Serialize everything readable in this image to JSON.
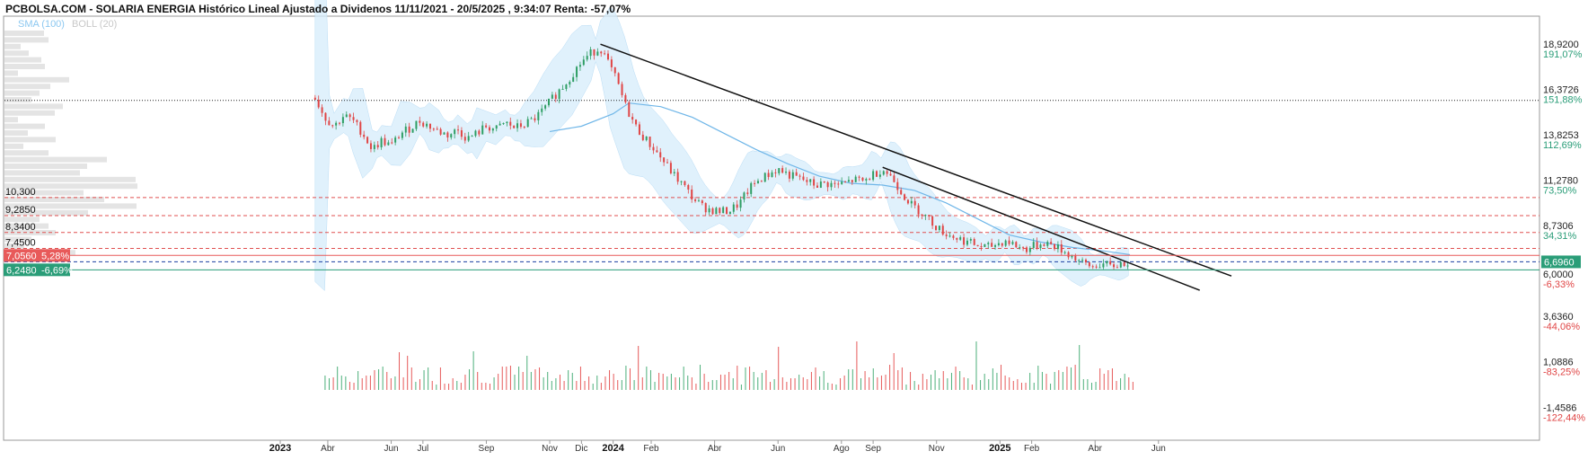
{
  "chart_data": {
    "type": "candlestick",
    "title": "PCBOLSA.COM - SOLARIA ENERGIA Histórico Lineal Ajustado a Dividenos 11/11/2021 - 20/5/2025 , 9:34:07 Renta: -57,07%",
    "legend": [
      {
        "label": "SMA (100)",
        "color": "#8cc8f0"
      },
      {
        "label": "BOLL (20)",
        "color": "#c8c8c8"
      }
    ],
    "x_axis": {
      "ticks": [
        {
          "label": "2023",
          "bold": true,
          "t": 0
        },
        {
          "label": "Abr",
          "bold": false,
          "t": 1.5
        },
        {
          "label": "Jun",
          "bold": false,
          "t": 3.5
        },
        {
          "label": "Jul",
          "bold": false,
          "t": 4.5
        },
        {
          "label": "Sep",
          "bold": false,
          "t": 6.5
        },
        {
          "label": "Nov",
          "bold": false,
          "t": 8.5
        },
        {
          "label": "Dic",
          "bold": false,
          "t": 9.5
        },
        {
          "label": "2024",
          "bold": true,
          "t": 10.5
        },
        {
          "label": "Feb",
          "bold": false,
          "t": 11.7
        },
        {
          "label": "Abr",
          "bold": false,
          "t": 13.7
        },
        {
          "label": "Jun",
          "bold": false,
          "t": 15.7
        },
        {
          "label": "Ago",
          "bold": false,
          "t": 17.7
        },
        {
          "label": "Sep",
          "bold": false,
          "t": 18.7
        },
        {
          "label": "Nov",
          "bold": false,
          "t": 20.7
        },
        {
          "label": "2025",
          "bold": true,
          "t": 22.7
        },
        {
          "label": "Feb",
          "bold": false,
          "t": 23.7
        },
        {
          "label": "Abr",
          "bold": false,
          "t": 25.7
        },
        {
          "label": "Jun",
          "bold": false,
          "t": 27.7
        }
      ]
    },
    "y_axis": {
      "range": [
        -2.3,
        19.6
      ],
      "ticks": [
        {
          "value": "18,9200",
          "pct": "191,07%",
          "v": 18.92,
          "pos": true
        },
        {
          "value": "16,3726",
          "pct": "151,88%",
          "v": 16.3726,
          "pos": true
        },
        {
          "value": "13,8253",
          "pct": "112,69%",
          "v": 13.8253,
          "pos": true
        },
        {
          "value": "11,2780",
          "pct": "73,50%",
          "v": 11.278,
          "pos": true
        },
        {
          "value": "8,7306",
          "pct": "34,31%",
          "v": 8.7306,
          "pos": true
        },
        {
          "value": "6,0000",
          "pct": "-6,33%",
          "v": 6.0,
          "pos": false
        },
        {
          "value": "3,6360",
          "pct": "-44,06%",
          "v": 3.636,
          "pos": false
        },
        {
          "value": "1,0886",
          "pct": "-83,25%",
          "v": 1.0886,
          "pos": false
        },
        {
          "value": "-1,4586",
          "pct": "-122,44%",
          "v": -1.4586,
          "pos": false
        }
      ]
    },
    "current_price": "6,6960",
    "horizontal_levels": [
      {
        "label": "10,300",
        "v": 10.3,
        "color": "#e05050",
        "style": "dashed"
      },
      {
        "label": "9,2850",
        "v": 9.285,
        "color": "#e05050",
        "style": "dashed"
      },
      {
        "label": "8,3400",
        "v": 8.34,
        "color": "#e05050",
        "style": "dashed"
      },
      {
        "label": "7,4500",
        "v": 7.45,
        "color": "#e05050",
        "style": "dashed"
      },
      {
        "label": "",
        "v": 15.75,
        "color": "#222222",
        "style": "dotted"
      },
      {
        "label": "",
        "v": 6.7,
        "color": "#1a3fa0",
        "style": "dashed"
      }
    ],
    "tags": [
      {
        "price": "7,0560",
        "pct": "5,28%",
        "v": 7.056,
        "color": "#e85a5a"
      },
      {
        "price": "6,2480",
        "pct": "-6,69%",
        "v": 6.248,
        "color": "#2a9d78"
      }
    ],
    "series": [
      {
        "t": 1.1,
        "v": 15.9
      },
      {
        "t": 1.4,
        "v": 14.8
      },
      {
        "t": 1.7,
        "v": 14.3
      },
      {
        "t": 2.0,
        "v": 14.9
      },
      {
        "t": 2.3,
        "v": 14.6
      },
      {
        "t": 2.6,
        "v": 13.9
      },
      {
        "t": 2.9,
        "v": 13.0
      },
      {
        "t": 3.2,
        "v": 13.5
      },
      {
        "t": 3.5,
        "v": 13.2
      },
      {
        "t": 3.8,
        "v": 13.9
      },
      {
        "t": 4.1,
        "v": 14.2
      },
      {
        "t": 4.4,
        "v": 14.6
      },
      {
        "t": 4.7,
        "v": 14.3
      },
      {
        "t": 5.0,
        "v": 14.0
      },
      {
        "t": 5.3,
        "v": 13.8
      },
      {
        "t": 5.6,
        "v": 14.1
      },
      {
        "t": 5.9,
        "v": 13.6
      },
      {
        "t": 6.2,
        "v": 13.9
      },
      {
        "t": 6.5,
        "v": 14.3
      },
      {
        "t": 6.8,
        "v": 14.1
      },
      {
        "t": 7.1,
        "v": 14.5
      },
      {
        "t": 7.4,
        "v": 14.2
      },
      {
        "t": 7.7,
        "v": 14.4
      },
      {
        "t": 8.0,
        "v": 14.7
      },
      {
        "t": 8.3,
        "v": 15.2
      },
      {
        "t": 8.6,
        "v": 15.9
      },
      {
        "t": 8.9,
        "v": 16.5
      },
      {
        "t": 9.2,
        "v": 17.2
      },
      {
        "t": 9.5,
        "v": 17.9
      },
      {
        "t": 9.8,
        "v": 18.4
      },
      {
        "t": 10.1,
        "v": 18.7
      },
      {
        "t": 10.3,
        "v": 18.0
      },
      {
        "t": 10.6,
        "v": 16.9
      },
      {
        "t": 10.9,
        "v": 15.4
      },
      {
        "t": 11.2,
        "v": 14.3
      },
      {
        "t": 11.5,
        "v": 13.6
      },
      {
        "t": 11.8,
        "v": 13.0
      },
      {
        "t": 12.1,
        "v": 12.3
      },
      {
        "t": 12.4,
        "v": 11.6
      },
      {
        "t": 12.7,
        "v": 11.0
      },
      {
        "t": 13.0,
        "v": 10.3
      },
      {
        "t": 13.3,
        "v": 9.8
      },
      {
        "t": 13.6,
        "v": 9.6
      },
      {
        "t": 13.9,
        "v": 9.5
      },
      {
        "t": 14.2,
        "v": 9.6
      },
      {
        "t": 14.5,
        "v": 10.0
      },
      {
        "t": 14.8,
        "v": 10.8
      },
      {
        "t": 15.1,
        "v": 11.3
      },
      {
        "t": 15.4,
        "v": 11.6
      },
      {
        "t": 15.7,
        "v": 11.9
      },
      {
        "t": 16.0,
        "v": 11.6
      },
      {
        "t": 16.3,
        "v": 11.4
      },
      {
        "t": 16.6,
        "v": 11.2
      },
      {
        "t": 16.9,
        "v": 11.0
      },
      {
        "t": 17.2,
        "v": 11.1
      },
      {
        "t": 17.5,
        "v": 11.0
      },
      {
        "t": 17.8,
        "v": 11.1
      },
      {
        "t": 18.1,
        "v": 11.3
      },
      {
        "t": 18.4,
        "v": 11.2
      },
      {
        "t": 18.7,
        "v": 11.6
      },
      {
        "t": 19.0,
        "v": 11.9
      },
      {
        "t": 19.3,
        "v": 11.4
      },
      {
        "t": 19.6,
        "v": 10.6
      },
      {
        "t": 19.9,
        "v": 9.9
      },
      {
        "t": 20.2,
        "v": 9.5
      },
      {
        "t": 20.5,
        "v": 9.0
      },
      {
        "t": 20.8,
        "v": 8.5
      },
      {
        "t": 21.1,
        "v": 8.2
      },
      {
        "t": 21.4,
        "v": 8.0
      },
      {
        "t": 21.7,
        "v": 7.8
      },
      {
        "t": 22.0,
        "v": 7.6
      },
      {
        "t": 22.3,
        "v": 7.5
      },
      {
        "t": 22.6,
        "v": 7.7
      },
      {
        "t": 22.9,
        "v": 7.9
      },
      {
        "t": 23.2,
        "v": 7.6
      },
      {
        "t": 23.5,
        "v": 7.4
      },
      {
        "t": 23.8,
        "v": 7.6
      },
      {
        "t": 24.1,
        "v": 7.8
      },
      {
        "t": 24.4,
        "v": 7.6
      },
      {
        "t": 24.7,
        "v": 7.3
      },
      {
        "t": 25.0,
        "v": 7.0
      },
      {
        "t": 25.3,
        "v": 6.6
      },
      {
        "t": 25.6,
        "v": 6.4
      },
      {
        "t": 25.9,
        "v": 6.6
      },
      {
        "t": 26.2,
        "v": 6.4
      },
      {
        "t": 26.5,
        "v": 6.6
      },
      {
        "t": 26.8,
        "v": 6.7
      }
    ],
    "sma_100": [
      {
        "t": 8.5,
        "v": 14.0
      },
      {
        "t": 9.5,
        "v": 14.3
      },
      {
        "t": 10.5,
        "v": 15.0
      },
      {
        "t": 11.0,
        "v": 15.6
      },
      {
        "t": 12.0,
        "v": 15.4
      },
      {
        "t": 13.0,
        "v": 14.8
      },
      {
        "t": 14.0,
        "v": 13.9
      },
      {
        "t": 15.0,
        "v": 13.0
      },
      {
        "t": 16.0,
        "v": 12.2
      },
      {
        "t": 17.0,
        "v": 11.5
      },
      {
        "t": 18.0,
        "v": 11.1
      },
      {
        "t": 19.0,
        "v": 11.0
      },
      {
        "t": 20.0,
        "v": 10.7
      },
      {
        "t": 21.0,
        "v": 10.0
      },
      {
        "t": 22.0,
        "v": 9.1
      },
      {
        "t": 23.0,
        "v": 8.2
      },
      {
        "t": 24.0,
        "v": 7.8
      },
      {
        "t": 25.0,
        "v": 7.5
      },
      {
        "t": 26.0,
        "v": 7.3
      },
      {
        "t": 26.8,
        "v": 7.1
      }
    ],
    "trendlines": [
      {
        "t1": 10.1,
        "v1": 18.9,
        "t2": 30.0,
        "v2": 5.9
      },
      {
        "t1": 19.0,
        "v1": 12.0,
        "t2": 29.0,
        "v2": 5.1
      }
    ]
  }
}
